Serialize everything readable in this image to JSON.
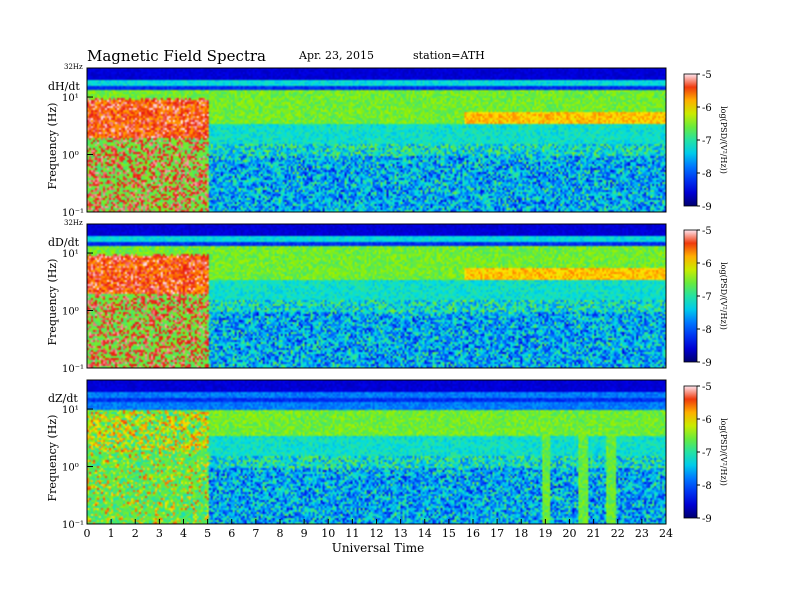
{
  "header": {
    "title": "Magnetic  Field  Spectra",
    "date": "Apr. 23, 2015",
    "station": "station=ATH"
  },
  "chart_data": [
    {
      "type": "heatmap",
      "panel_label": "dH/dt",
      "ylabel": "Frequency  (Hz)",
      "top_label": "32Hz",
      "ytick_labels": [
        "10¹",
        "10⁰",
        "10⁻¹"
      ],
      "yscale": "log",
      "ylim": [
        0.1,
        32
      ],
      "xlim": [
        0,
        24
      ],
      "colorbar": {
        "label": "log(PSD/(V²/Hz))",
        "range": [
          -9,
          -5
        ],
        "ticks": [
          "-5",
          "-6",
          "-7",
          "-8",
          "-9"
        ]
      },
      "hf_band_hours": [
        [
          15.6,
          24
        ]
      ],
      "dips": []
    },
    {
      "type": "heatmap",
      "panel_label": "dD/dt",
      "ylabel": "Frequency  (Hz)",
      "top_label": "32Hz",
      "ytick_labels": [
        "10¹",
        "10⁰",
        "10⁻¹"
      ],
      "yscale": "log",
      "ylim": [
        0.1,
        32
      ],
      "xlim": [
        0,
        24
      ],
      "colorbar": {
        "label": "log(PSD/(V²/Hz))",
        "range": [
          -9,
          -5
        ],
        "ticks": [
          "-5",
          "-6",
          "-7",
          "-8",
          "-9"
        ]
      },
      "hf_band_hours": [
        [
          15.6,
          24
        ]
      ],
      "dips": []
    },
    {
      "type": "heatmap",
      "panel_label": "dZ/dt",
      "ylabel": "Frequency  (Hz)",
      "top_label": "",
      "ytick_labels": [
        "10¹",
        "10⁰",
        "10⁻¹"
      ],
      "yscale": "log",
      "ylim": [
        0.1,
        32
      ],
      "xlim": [
        0,
        24
      ],
      "colorbar": {
        "label": "log(PSD/(V²/Hz))",
        "range": [
          -9,
          -5
        ],
        "ticks": [
          "-5",
          "-6",
          "-7",
          "-8",
          "-9"
        ]
      },
      "hf_band_hours": [],
      "dips": [
        19.0,
        20.5,
        21.7
      ]
    }
  ],
  "xaxis": {
    "label": "Universal  Time",
    "ticks": [
      "0",
      "1",
      "2",
      "3",
      "4",
      "5",
      "6",
      "7",
      "8",
      "9",
      "10",
      "11",
      "12",
      "13",
      "14",
      "15",
      "16",
      "17",
      "18",
      "19",
      "20",
      "21",
      "22",
      "23",
      "24"
    ]
  }
}
